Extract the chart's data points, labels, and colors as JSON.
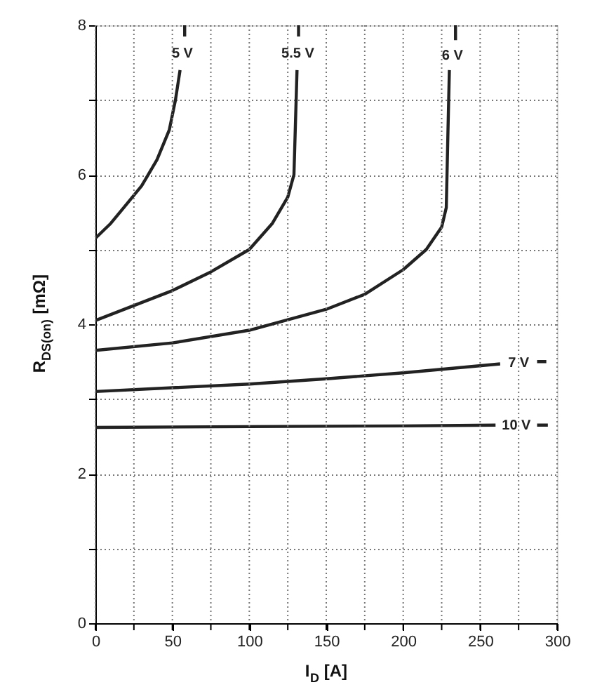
{
  "chart_data": {
    "type": "line",
    "xlabel": "I$_{D}$ [A]",
    "ylabel": "R$_{DS(on)}$ [mΩ]",
    "xlim": [
      0,
      300
    ],
    "ylim": [
      0,
      8
    ],
    "xticks": [
      0,
      {
        "value": 25,
        "label": null
      },
      50,
      {
        "value": 75,
        "label": null
      },
      100,
      {
        "value": 125,
        "label": null
      },
      150,
      {
        "value": 175,
        "label": null
      },
      200,
      {
        "value": 225,
        "label": null
      },
      250,
      {
        "value": 275,
        "label": null
      },
      300
    ],
    "yticks": [
      0,
      {
        "value": 1,
        "label": null
      },
      2,
      {
        "value": 3,
        "label": null
      },
      4,
      {
        "value": 5,
        "label": null
      },
      6,
      {
        "value": 7,
        "label": null
      },
      8
    ],
    "grid": true,
    "marker": "none",
    "line_style": "solid",
    "legend": false,
    "series": [
      {
        "name": "5 V",
        "color": "#222222",
        "x": [
          0,
          10,
          20,
          30,
          40,
          48,
          52,
          55,
          null,
          58,
          58
        ],
        "values": [
          5.15,
          5.35,
          5.6,
          5.85,
          6.2,
          6.6,
          7.0,
          7.4,
          null,
          7.85,
          8.0
        ]
      },
      {
        "name": "5.5 V",
        "color": "#222222",
        "x": [
          0,
          25,
          50,
          75,
          100,
          115,
          125,
          129,
          131,
          null,
          132,
          132
        ],
        "values": [
          4.05,
          4.25,
          4.45,
          4.7,
          5.0,
          5.35,
          5.7,
          6.0,
          7.4,
          null,
          7.85,
          8.0
        ]
      },
      {
        "name": "6 V",
        "color": "#222222",
        "x": [
          0,
          50,
          100,
          150,
          175,
          200,
          215,
          225,
          228,
          229,
          230,
          null,
          234,
          234
        ],
        "values": [
          3.65,
          3.75,
          3.92,
          4.2,
          4.4,
          4.73,
          5.0,
          5.3,
          5.56,
          6.5,
          7.4,
          null,
          7.8,
          8.0
        ]
      },
      {
        "name": "7 V",
        "color": "#222222",
        "x": [
          0,
          50,
          100,
          150,
          200,
          263,
          null,
          287,
          293
        ],
        "values": [
          3.1,
          3.15,
          3.2,
          3.27,
          3.35,
          3.47,
          null,
          3.5,
          3.5
        ]
      },
      {
        "name": "10 V",
        "color": "#222222",
        "x": [
          0,
          100,
          200,
          260,
          null,
          287,
          294
        ],
        "values": [
          2.62,
          2.63,
          2.64,
          2.65,
          null,
          2.65,
          2.65
        ]
      }
    ]
  }
}
